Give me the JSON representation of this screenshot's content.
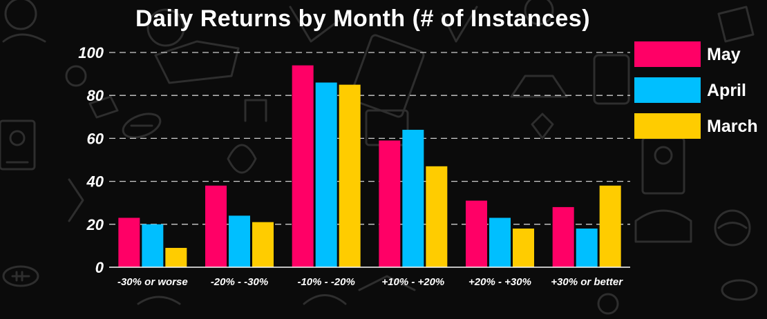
{
  "chart_data": {
    "type": "bar",
    "title": "Daily Returns by Month (# of Instances)",
    "categories": [
      "-30% or worse",
      "-20% - -30%",
      "-10% - -20%",
      "+10% - +20%",
      "+20% - +30%",
      "+30% or better"
    ],
    "series": [
      {
        "name": "May",
        "color": "#ff0066",
        "values": [
          23,
          38,
          94,
          59,
          31,
          28
        ]
      },
      {
        "name": "April",
        "color": "#00bfff",
        "values": [
          20,
          24,
          86,
          64,
          23,
          18
        ]
      },
      {
        "name": "March",
        "color": "#ffcc00",
        "values": [
          9,
          21,
          85,
          47,
          18,
          38
        ]
      }
    ],
    "ylim": [
      0,
      100
    ],
    "yticks": [
      0,
      20,
      40,
      60,
      80,
      100
    ],
    "grid": true,
    "legend_position": "right"
  },
  "background": {
    "color": "#0b0b0b",
    "doodle_color": "#2e2e2e"
  }
}
